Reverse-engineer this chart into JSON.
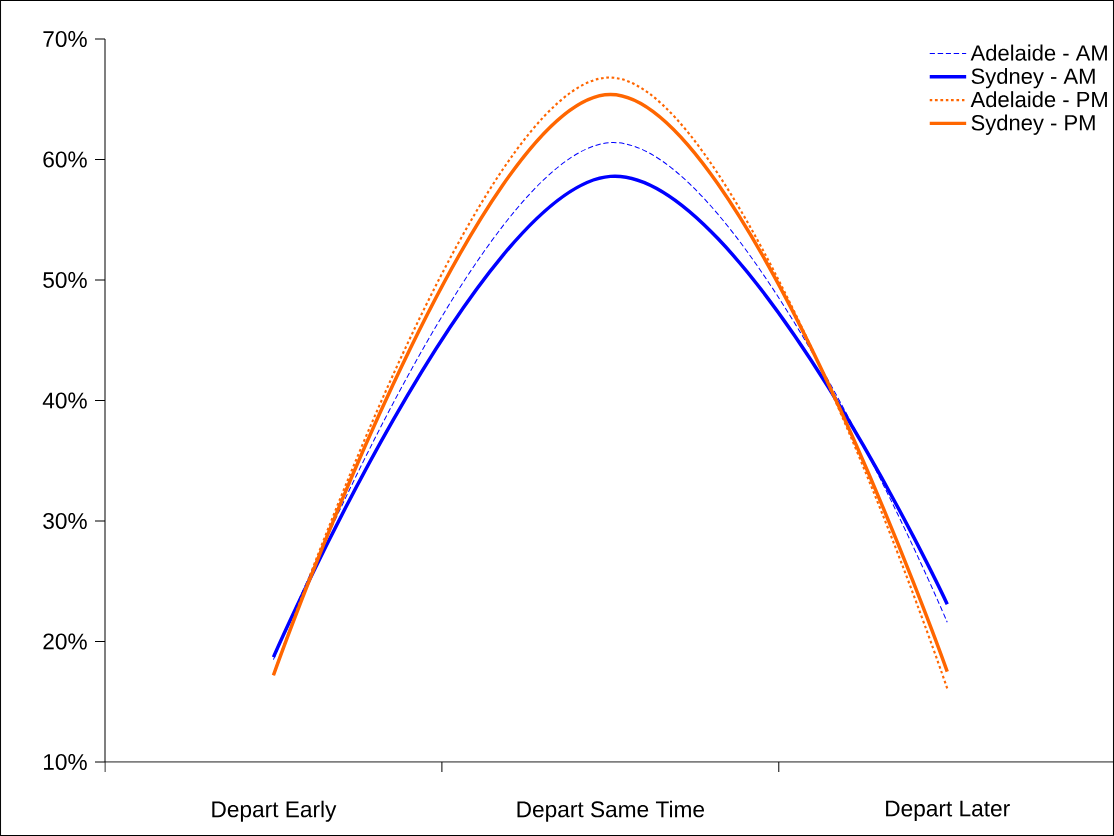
{
  "chart_data": {
    "type": "line",
    "categories": [
      "Depart Early",
      "Depart Same Time",
      "Depart Later"
    ],
    "series": [
      {
        "name": "Adelaide - AM",
        "color": "#0000ff",
        "line_style": "dashed",
        "values": [
          18.5,
          61.4,
          21.6
        ]
      },
      {
        "name": "Sydney - AM",
        "color": "#0000ff",
        "line_style": "solid",
        "values": [
          18.7,
          58.6,
          23.1
        ]
      },
      {
        "name": "Adelaide - PM",
        "color": "#ff6600",
        "line_style": "dotted",
        "values": [
          17.2,
          66.8,
          16.1
        ]
      },
      {
        "name": "Sydney - PM",
        "color": "#ff6600",
        "line_style": "solid",
        "values": [
          17.2,
          65.4,
          17.5
        ]
      }
    ],
    "ylim": [
      10,
      70
    ],
    "yticks": [
      {
        "value": 10,
        "label": "10%"
      },
      {
        "value": 20,
        "label": "20%"
      },
      {
        "value": 30,
        "label": "30%"
      },
      {
        "value": 40,
        "label": "40%"
      },
      {
        "value": 50,
        "label": "50%"
      },
      {
        "value": 60,
        "label": "60%"
      },
      {
        "value": 70,
        "label": "70%"
      }
    ],
    "legend": "top right"
  }
}
